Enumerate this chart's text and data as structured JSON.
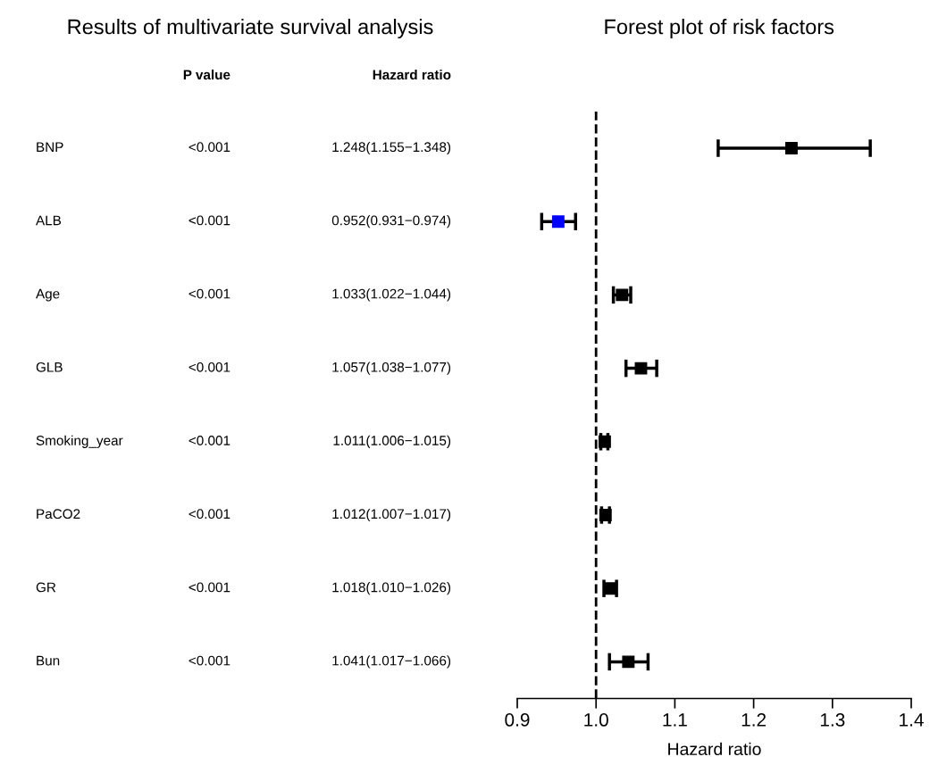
{
  "chart_data": [
    {
      "type": "other",
      "title": "Results of multivariate survival analysis",
      "annotations": [
        "P value",
        "Hazard ratio",
        "BNP",
        "<0.001",
        "1.248(1.155−1.348)",
        "ALB",
        "<0.001",
        "0.952(0.931−0.974)",
        "Age",
        "<0.001",
        "1.033(1.022−1.044)",
        "GLB",
        "<0.001",
        "1.057(1.038−1.077)",
        "Smoking_year",
        "<0.001",
        "1.011(1.006−1.015)",
        "PaCO2",
        "<0.001",
        "1.012(1.007−1.017)",
        "GR",
        "<0.001",
        "1.018(1.010−1.026)",
        "Bun",
        "<0.001",
        "1.041(1.017−1.066)"
      ]
    },
    {
      "type": "scatter",
      "orientation": "horizontal",
      "title": "Forest plot of risk factors",
      "xlabel": "Hazard ratio",
      "categories": [
        null,
        null,
        null,
        null,
        null,
        null,
        null,
        null
      ],
      "values": [
        1.248,
        0.952,
        1.033,
        1.057,
        1.011,
        1.012,
        1.018,
        1.041
      ],
      "errors": [
        [
          1.155,
          1.348
        ],
        [
          0.931,
          0.974
        ],
        [
          1.022,
          1.044
        ],
        [
          1.038,
          1.077
        ],
        [
          1.006,
          1.015
        ],
        [
          1.007,
          1.017
        ],
        [
          1.01,
          1.026
        ],
        [
          1.017,
          1.066
        ]
      ],
      "colors": [
        "#000000",
        "#0000ff",
        "#000000",
        "#000000",
        "#000000",
        "#000000",
        "#000000",
        "#000000"
      ],
      "marker": "square",
      "xlim": [
        0.9,
        1.4
      ],
      "xticks": [
        0.9,
        {
          "value": 1.0,
          "label": "1.0"
        },
        1.1,
        1.2,
        1.3,
        1.4
      ],
      "tick_labels": "x",
      "ref_lines": [
        {
          "axis": "x",
          "value": 1.0,
          "line_style": "dashed",
          "color": "#000000"
        }
      ]
    }
  ]
}
